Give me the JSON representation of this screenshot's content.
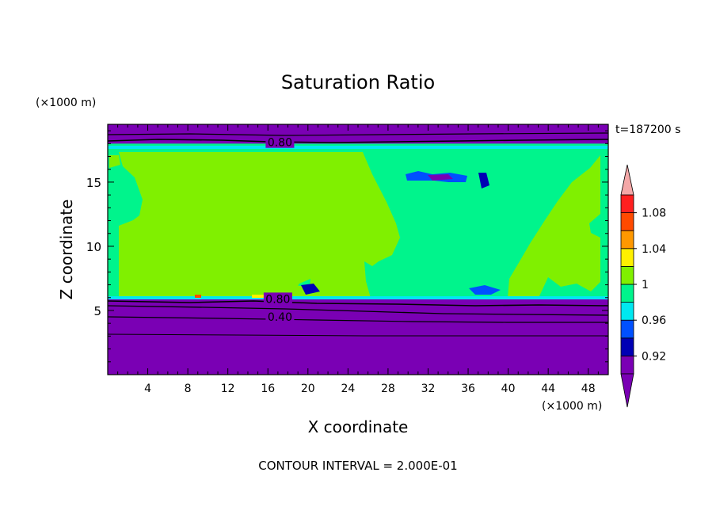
{
  "chart_data": {
    "type": "heatmap",
    "title": "Saturation Ratio",
    "xlabel": "X coordinate",
    "ylabel": "Z coordinate",
    "x_unit": "(×1000 m)",
    "y_unit": "(×1000 m)",
    "time_label": "t=187200 s",
    "footer": "CONTOUR INTERVAL = 2.000E-01",
    "xlim": [
      0,
      50
    ],
    "ylim": [
      0,
      19.5
    ],
    "x_ticks": [
      4,
      8,
      12,
      16,
      20,
      24,
      28,
      32,
      36,
      40,
      44,
      48
    ],
    "y_ticks": [
      5,
      10,
      15
    ],
    "contour_labels": [
      {
        "text": "0.80",
        "x": 17.2,
        "z": 18.1
      },
      {
        "text": "0.80",
        "x": 17.0,
        "z": 5.9
      },
      {
        "text": "0.40",
        "x": 17.2,
        "z": 4.5
      }
    ],
    "colorbar": {
      "levels": [
        0.9,
        0.92,
        0.94,
        0.96,
        0.98,
        1.0,
        1.02,
        1.04,
        1.06,
        1.08,
        1.1
      ],
      "tick_labels": [
        "0.92",
        "0.96",
        "1",
        "1.04",
        "1.08"
      ],
      "tick_values": [
        0.92,
        0.96,
        1.0,
        1.04,
        1.08
      ],
      "colors": [
        "#7a00b4",
        "#0000b4",
        "#0050ff",
        "#00e8f0",
        "#00f48c",
        "#80f000",
        "#fff000",
        "#ff9800",
        "#ff4a00",
        "#ff2020"
      ],
      "under_color": "#7a00b4",
      "over_color": "#f4a8a8"
    },
    "bands": {
      "dry_color": "#7a00b4",
      "sat_color": "#00f48c",
      "super_color": "#80f000",
      "edge_color": "#00e8f0",
      "lower_dry_z": [
        0,
        6.0
      ],
      "cloud_layer_z": [
        6.0,
        18.0
      ],
      "upper_dry_z": [
        18.0,
        19.5
      ]
    }
  }
}
